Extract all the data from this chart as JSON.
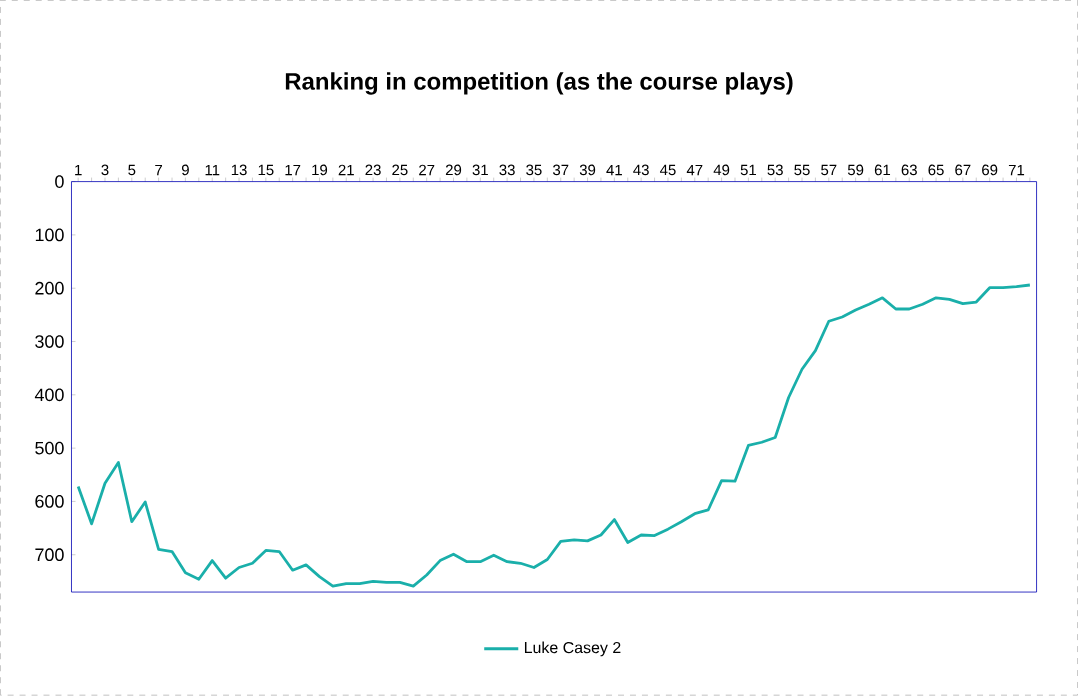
{
  "chart_data": {
    "type": "line",
    "title": "Ranking in competition (as the course plays)",
    "categories": [
      "1",
      null,
      "3",
      null,
      "5",
      null,
      "7",
      null,
      "9",
      null,
      "11",
      null,
      "13",
      null,
      "15",
      null,
      "17",
      null,
      "19",
      null,
      "21",
      null,
      "23",
      null,
      "25",
      null,
      "27",
      null,
      "29",
      null,
      "31",
      null,
      "33",
      null,
      "35",
      null,
      "37",
      null,
      "39",
      null,
      "41",
      null,
      "43",
      null,
      "45",
      null,
      "47",
      null,
      "49",
      null,
      "51",
      null,
      "53",
      null,
      "55",
      null,
      "57",
      null,
      "59",
      null,
      "61",
      null,
      "63",
      null,
      "65",
      null,
      "67",
      null,
      "69",
      null,
      "71",
      null
    ],
    "series": [
      {
        "name": "Luke Casey 2",
        "color": "#1aafaa",
        "values": [
          572,
          642,
          566,
          527,
          638,
          601,
          690,
          694,
          734,
          746,
          711,
          744,
          724,
          716,
          692,
          694,
          729,
          719,
          741,
          759,
          754,
          754,
          750,
          752,
          752,
          759,
          738,
          711,
          699,
          713,
          713,
          701,
          713,
          716,
          724,
          709,
          675,
          672,
          674,
          663,
          634,
          677,
          663,
          664,
          652,
          638,
          623,
          616,
          561,
          562,
          495,
          489,
          480,
          405,
          352,
          317,
          262,
          254,
          241,
          230,
          218,
          239,
          239,
          230,
          218,
          221,
          229,
          226,
          199,
          199,
          197,
          194
        ]
      }
    ],
    "ylim": [
      770,
      0
    ],
    "yticks": [
      0,
      100,
      200,
      300,
      400,
      500,
      600,
      700
    ],
    "grid": false,
    "legend": "bottom",
    "marker": "none",
    "line_style": "solid"
  }
}
